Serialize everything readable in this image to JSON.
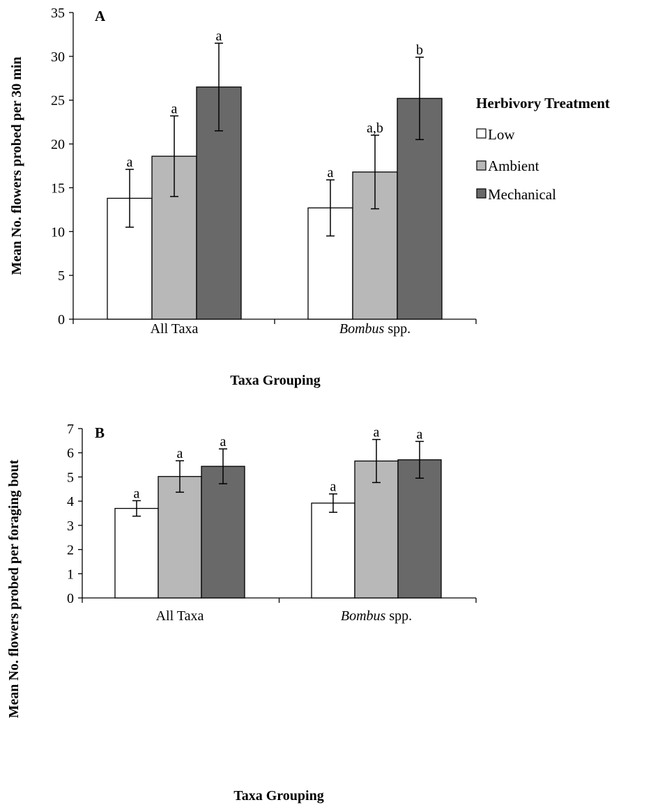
{
  "chart_data": [
    {
      "type": "bar",
      "panel": "A",
      "categories": [
        {
          "normal": "All Taxa",
          "italic": ""
        },
        {
          "normal": " spp.",
          "italic": "Bombus"
        }
      ],
      "series": [
        {
          "name": "Low",
          "values": [
            13.8,
            12.7
          ],
          "errors": [
            3.3,
            3.2
          ],
          "letters": [
            "a",
            "a"
          ]
        },
        {
          "name": "Ambient",
          "values": [
            18.6,
            16.8
          ],
          "errors": [
            4.6,
            4.2
          ],
          "letters": [
            "a",
            "a,b"
          ]
        },
        {
          "name": "Mechanical",
          "values": [
            26.5,
            25.2
          ],
          "errors": [
            5.0,
            4.7
          ],
          "letters": [
            "a",
            "b"
          ]
        }
      ],
      "ylabel": "Mean No. flowers probed per 30 min",
      "xlabel": "Taxa Grouping",
      "ylim": [
        0,
        35
      ],
      "yticks": [
        "0",
        "5",
        "10",
        "15",
        "20",
        "25",
        "30",
        "35"
      ],
      "legend": {
        "title": "Herbivory Treatment",
        "items": [
          "Low",
          "Ambient",
          "Mechanical"
        ],
        "placement": "right"
      }
    },
    {
      "type": "bar",
      "panel": "B",
      "categories": [
        {
          "normal": "All Taxa",
          "italic": ""
        },
        {
          "normal": " spp.",
          "italic": "Bombus"
        }
      ],
      "series": [
        {
          "name": "Low",
          "values": [
            3.7,
            3.92
          ],
          "errors": [
            0.32,
            0.38
          ],
          "letters": [
            "a",
            "a"
          ]
        },
        {
          "name": "Ambient",
          "values": [
            5.02,
            5.66
          ],
          "errors": [
            0.65,
            0.89
          ],
          "letters": [
            "a",
            "a"
          ]
        },
        {
          "name": "Mechanical",
          "values": [
            5.44,
            5.71
          ],
          "errors": [
            0.72,
            0.76
          ],
          "letters": [
            "a",
            "a"
          ]
        }
      ],
      "ylabel": "Mean No. flowers probed per foraging bout",
      "xlabel": "Taxa Grouping",
      "ylim": [
        0,
        7
      ],
      "yticks": [
        "0",
        "1",
        "2",
        "3",
        "4",
        "5",
        "6",
        "7"
      ]
    }
  ],
  "colors": {
    "Low": "#ffffff",
    "Ambient": "#b8b8b8",
    "Mechanical": "#696969"
  }
}
